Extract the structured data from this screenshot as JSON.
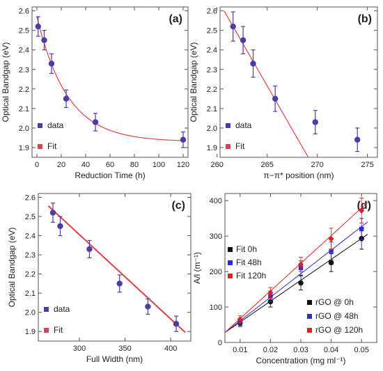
{
  "colors": {
    "data_marker": "#4a3da6",
    "fit_line": "#e0404a",
    "black_series": "#111111",
    "blue_series": "#2a2ae0",
    "red_series": "#e02020"
  },
  "chart_data": [
    {
      "type": "scatter",
      "panel_tag": "(a)",
      "xlabel": "Reduction Time (h)",
      "ylabel": "Optical Bandgap (eV)",
      "xlim": [
        -4,
        124
      ],
      "ylim": [
        1.85,
        2.62
      ],
      "xticks": [
        0,
        20,
        40,
        60,
        80,
        100,
        120
      ],
      "yticks": [
        1.9,
        2.0,
        2.1,
        2.2,
        2.3,
        2.4,
        2.5,
        2.6
      ],
      "legend": [
        "data",
        "Fit"
      ],
      "legend_position": "bottom-left",
      "series": [
        {
          "name": "data",
          "x": [
            1,
            6,
            12,
            24,
            48,
            120
          ],
          "y": [
            2.52,
            2.45,
            2.33,
            2.15,
            2.03,
            1.94
          ],
          "err": [
            0.05,
            0.05,
            0.05,
            0.045,
            0.045,
            0.04
          ]
        }
      ],
      "fit": {
        "kind": "exponential",
        "asymptote": 1.93,
        "amplitude": 0.64,
        "tau": 25,
        "x_range": [
          0,
          120
        ]
      }
    },
    {
      "type": "scatter",
      "panel_tag": "(b)",
      "xlabel": "π−π* position (nm)",
      "ylabel": "Optical Bandgap (eV)",
      "xlim": [
        260.3,
        276
      ],
      "ylim": [
        1.85,
        2.62
      ],
      "xticks": [
        260,
        265,
        270,
        275
      ],
      "yticks": [
        1.9,
        2.0,
        2.1,
        2.2,
        2.3,
        2.4,
        2.5,
        2.6
      ],
      "legend": [
        "data",
        "Fit"
      ],
      "legend_position": "bottom-left",
      "series": [
        {
          "name": "data",
          "x": [
            261.6,
            262.6,
            263.6,
            265.8,
            269.8,
            274
          ],
          "y": [
            2.52,
            2.45,
            2.33,
            2.15,
            2.03,
            1.94
          ],
          "err": [
            0.075,
            0.07,
            0.07,
            0.065,
            0.06,
            0.06
          ]
        }
      ],
      "fit": {
        "kind": "linear",
        "points": [
          [
            260.7,
            2.6
          ],
          [
            269.1,
            1.85
          ]
        ]
      }
    },
    {
      "type": "scatter",
      "panel_tag": "(c)",
      "xlabel": "Full Width (nm)",
      "ylabel": "Optical Bandgap (eV)",
      "xlim": [
        255,
        422
      ],
      "ylim": [
        1.85,
        2.62
      ],
      "xticks": [
        300,
        350,
        400
      ],
      "yticks": [
        1.9,
        2.0,
        2.1,
        2.2,
        2.3,
        2.4,
        2.5,
        2.6
      ],
      "legend": [
        "data",
        "Fit"
      ],
      "legend_position": "bottom-left",
      "series": [
        {
          "name": "data",
          "x": [
            271,
            279,
            311,
            344,
            375,
            406
          ],
          "y": [
            2.52,
            2.45,
            2.33,
            2.15,
            2.03,
            1.94
          ],
          "err": [
            0.05,
            0.05,
            0.045,
            0.045,
            0.04,
            0.04
          ]
        }
      ],
      "fit": {
        "kind": "linear",
        "points": [
          [
            266,
            2.555
          ],
          [
            416,
            1.895
          ]
        ]
      }
    },
    {
      "type": "scatter",
      "panel_tag": "(d)",
      "xlabel": "Concentration (mg ml⁻¹)",
      "ylabel": "A/l (m⁻¹)",
      "xlim": [
        0.005,
        0.055
      ],
      "ylim": [
        0,
        420
      ],
      "xticks": [
        0.01,
        0.02,
        0.03,
        0.04,
        0.05
      ],
      "yticks": [
        0,
        100,
        200,
        300,
        400
      ],
      "legend_top": [
        "Fit 0h",
        "Fit 48h",
        "Fit 120h"
      ],
      "legend_bottom": [
        "rGO @ 0h",
        "rGO @ 48h",
        "rGO @ 120h"
      ],
      "series": [
        {
          "name": "rGO @ 0h",
          "x": [
            0.01,
            0.02,
            0.03,
            0.04,
            0.05
          ],
          "y": [
            55,
            115,
            168,
            225,
            293
          ],
          "err": [
            10,
            15,
            20,
            25,
            30
          ]
        },
        {
          "name": "rGO @ 48h",
          "x": [
            0.01,
            0.02,
            0.03,
            0.04,
            0.05
          ],
          "y": [
            58,
            130,
            210,
            258,
            320
          ],
          "err": [
            10,
            15,
            20,
            25,
            30
          ]
        },
        {
          "name": "rGO @ 120h",
          "x": [
            0.01,
            0.02,
            0.03,
            0.04,
            0.05
          ],
          "y": [
            65,
            140,
            220,
            292,
            372
          ],
          "err": [
            10,
            15,
            20,
            30,
            35
          ]
        }
      ],
      "fits": [
        {
          "name": "Fit 0h",
          "points": [
            [
              0.005,
              28
            ],
            [
              0.052,
              305
            ]
          ]
        },
        {
          "name": "Fit 48h",
          "points": [
            [
              0.005,
              28
            ],
            [
              0.052,
              340
            ]
          ]
        },
        {
          "name": "Fit 120h",
          "points": [
            [
              0.005,
              28
            ],
            [
              0.052,
              395
            ]
          ]
        }
      ]
    }
  ]
}
